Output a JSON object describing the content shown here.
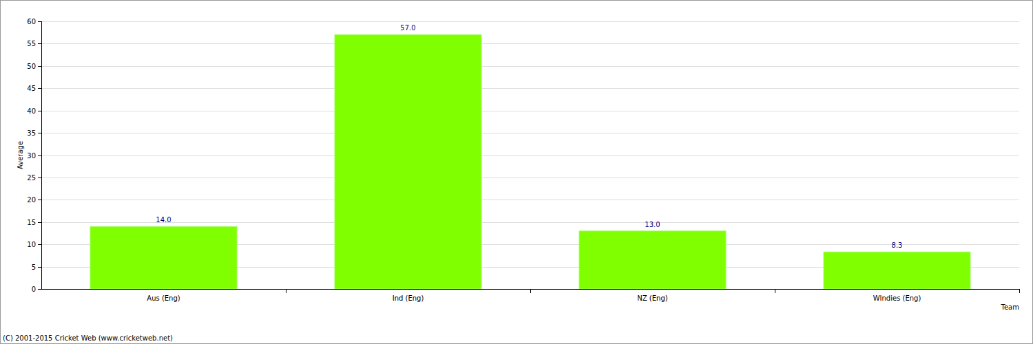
{
  "chart_data": {
    "type": "bar",
    "categories": [
      "Aus (Eng)",
      "Ind (Eng)",
      "NZ (Eng)",
      "WIndies (Eng)"
    ],
    "values": [
      14,
      57,
      13,
      8.3
    ],
    "value_labels": [
      "14.0",
      "57.0",
      "13.0",
      "8.3"
    ],
    "color": "#80ff00",
    "x_label": "Team",
    "y_label": "Average",
    "source": "(C) 2001-2015 Cricket Web (www.cricketweb.net)",
    "ylim": [
      0,
      60
    ],
    "yticks": [
      0,
      5,
      10,
      15,
      20,
      25,
      30,
      35,
      40,
      45,
      50,
      55,
      60
    ],
    "grid": true,
    "data_labels": true
  }
}
